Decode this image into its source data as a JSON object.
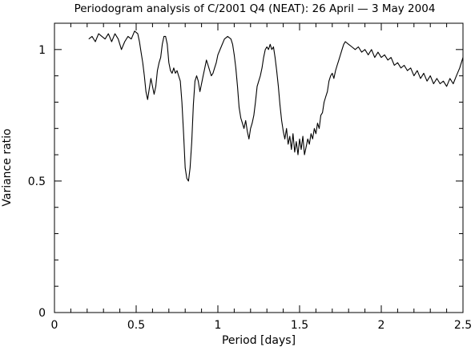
{
  "chart_data": {
    "type": "line",
    "title": "Periodogram analysis of C/2001 Q4 (NEAT): 26 April — 3 May 2004",
    "xlabel": "Period [days]",
    "ylabel": "Variance ratio",
    "xlim": [
      0,
      2.5
    ],
    "ylim": [
      0,
      1.1
    ],
    "x_ticks": [
      {
        "value": 0,
        "label": "0"
      },
      {
        "value": 0.5,
        "label": "0.5"
      },
      {
        "value": 1,
        "label": "1"
      },
      {
        "value": 1.5,
        "label": "1.5"
      },
      {
        "value": 2,
        "label": "2"
      },
      {
        "value": 2.5,
        "label": "2.5"
      }
    ],
    "y_ticks": [
      {
        "value": 0,
        "label": "0"
      },
      {
        "value": 0.5,
        "label": "0.5"
      },
      {
        "value": 1,
        "label": "1"
      }
    ],
    "x_minor_step": 0.1,
    "y_minor_step": 0.1,
    "grid": false,
    "series": [
      {
        "color": "#000000",
        "points": [
          [
            0.21,
            1.04
          ],
          [
            0.23,
            1.05
          ],
          [
            0.25,
            1.03
          ],
          [
            0.27,
            1.06
          ],
          [
            0.29,
            1.05
          ],
          [
            0.31,
            1.04
          ],
          [
            0.33,
            1.06
          ],
          [
            0.35,
            1.03
          ],
          [
            0.37,
            1.06
          ],
          [
            0.39,
            1.04
          ],
          [
            0.41,
            1.0
          ],
          [
            0.43,
            1.03
          ],
          [
            0.45,
            1.05
          ],
          [
            0.47,
            1.04
          ],
          [
            0.49,
            1.07
          ],
          [
            0.51,
            1.06
          ],
          [
            0.52,
            1.03
          ],
          [
            0.53,
            0.99
          ],
          [
            0.54,
            0.95
          ],
          [
            0.55,
            0.9
          ],
          [
            0.56,
            0.84
          ],
          [
            0.57,
            0.81
          ],
          [
            0.58,
            0.85
          ],
          [
            0.59,
            0.89
          ],
          [
            0.6,
            0.86
          ],
          [
            0.61,
            0.83
          ],
          [
            0.62,
            0.86
          ],
          [
            0.63,
            0.92
          ],
          [
            0.64,
            0.95
          ],
          [
            0.65,
            0.97
          ],
          [
            0.66,
            1.02
          ],
          [
            0.67,
            1.05
          ],
          [
            0.68,
            1.05
          ],
          [
            0.69,
            1.02
          ],
          [
            0.7,
            0.95
          ],
          [
            0.71,
            0.92
          ],
          [
            0.72,
            0.91
          ],
          [
            0.73,
            0.93
          ],
          [
            0.74,
            0.91
          ],
          [
            0.75,
            0.92
          ],
          [
            0.76,
            0.9
          ],
          [
            0.77,
            0.88
          ],
          [
            0.78,
            0.8
          ],
          [
            0.79,
            0.68
          ],
          [
            0.8,
            0.55
          ],
          [
            0.81,
            0.51
          ],
          [
            0.82,
            0.5
          ],
          [
            0.83,
            0.55
          ],
          [
            0.84,
            0.65
          ],
          [
            0.85,
            0.79
          ],
          [
            0.86,
            0.88
          ],
          [
            0.87,
            0.9
          ],
          [
            0.88,
            0.88
          ],
          [
            0.89,
            0.84
          ],
          [
            0.9,
            0.87
          ],
          [
            0.91,
            0.9
          ],
          [
            0.92,
            0.93
          ],
          [
            0.93,
            0.96
          ],
          [
            0.94,
            0.94
          ],
          [
            0.95,
            0.92
          ],
          [
            0.96,
            0.9
          ],
          [
            0.97,
            0.91
          ],
          [
            0.98,
            0.93
          ],
          [
            0.99,
            0.95
          ],
          [
            1.0,
            0.98
          ],
          [
            1.02,
            1.01
          ],
          [
            1.04,
            1.04
          ],
          [
            1.06,
            1.05
          ],
          [
            1.08,
            1.04
          ],
          [
            1.09,
            1.02
          ],
          [
            1.1,
            0.98
          ],
          [
            1.11,
            0.93
          ],
          [
            1.12,
            0.86
          ],
          [
            1.13,
            0.78
          ],
          [
            1.14,
            0.74
          ],
          [
            1.15,
            0.72
          ],
          [
            1.16,
            0.7
          ],
          [
            1.17,
            0.73
          ],
          [
            1.18,
            0.69
          ],
          [
            1.19,
            0.66
          ],
          [
            1.2,
            0.7
          ],
          [
            1.21,
            0.72
          ],
          [
            1.22,
            0.75
          ],
          [
            1.23,
            0.8
          ],
          [
            1.24,
            0.86
          ],
          [
            1.25,
            0.88
          ],
          [
            1.26,
            0.9
          ],
          [
            1.27,
            0.93
          ],
          [
            1.28,
            0.97
          ],
          [
            1.29,
            1.0
          ],
          [
            1.3,
            1.01
          ],
          [
            1.31,
            1.0
          ],
          [
            1.32,
            1.02
          ],
          [
            1.33,
            1.0
          ],
          [
            1.34,
            1.01
          ],
          [
            1.35,
            0.97
          ],
          [
            1.36,
            0.92
          ],
          [
            1.37,
            0.86
          ],
          [
            1.38,
            0.79
          ],
          [
            1.39,
            0.73
          ],
          [
            1.4,
            0.69
          ],
          [
            1.41,
            0.66
          ],
          [
            1.42,
            0.7
          ],
          [
            1.43,
            0.64
          ],
          [
            1.44,
            0.67
          ],
          [
            1.45,
            0.62
          ],
          [
            1.46,
            0.68
          ],
          [
            1.47,
            0.61
          ],
          [
            1.48,
            0.65
          ],
          [
            1.49,
            0.6
          ],
          [
            1.5,
            0.66
          ],
          [
            1.51,
            0.62
          ],
          [
            1.52,
            0.67
          ],
          [
            1.53,
            0.6
          ],
          [
            1.54,
            0.63
          ],
          [
            1.55,
            0.66
          ],
          [
            1.56,
            0.64
          ],
          [
            1.57,
            0.68
          ],
          [
            1.58,
            0.66
          ],
          [
            1.59,
            0.7
          ],
          [
            1.6,
            0.68
          ],
          [
            1.61,
            0.72
          ],
          [
            1.62,
            0.7
          ],
          [
            1.63,
            0.75
          ],
          [
            1.64,
            0.76
          ],
          [
            1.65,
            0.8
          ],
          [
            1.66,
            0.82
          ],
          [
            1.67,
            0.84
          ],
          [
            1.68,
            0.88
          ],
          [
            1.69,
            0.9
          ],
          [
            1.7,
            0.91
          ],
          [
            1.71,
            0.89
          ],
          [
            1.72,
            0.92
          ],
          [
            1.73,
            0.94
          ],
          [
            1.74,
            0.96
          ],
          [
            1.75,
            0.98
          ],
          [
            1.76,
            1.0
          ],
          [
            1.77,
            1.02
          ],
          [
            1.78,
            1.03
          ],
          [
            1.8,
            1.02
          ],
          [
            1.82,
            1.01
          ],
          [
            1.84,
            1.0
          ],
          [
            1.86,
            1.01
          ],
          [
            1.88,
            0.99
          ],
          [
            1.9,
            1.0
          ],
          [
            1.92,
            0.98
          ],
          [
            1.94,
            1.0
          ],
          [
            1.96,
            0.97
          ],
          [
            1.98,
            0.99
          ],
          [
            2.0,
            0.97
          ],
          [
            2.02,
            0.98
          ],
          [
            2.04,
            0.96
          ],
          [
            2.06,
            0.97
          ],
          [
            2.08,
            0.94
          ],
          [
            2.1,
            0.95
          ],
          [
            2.12,
            0.93
          ],
          [
            2.14,
            0.94
          ],
          [
            2.16,
            0.92
          ],
          [
            2.18,
            0.93
          ],
          [
            2.2,
            0.9
          ],
          [
            2.22,
            0.92
          ],
          [
            2.24,
            0.89
          ],
          [
            2.26,
            0.91
          ],
          [
            2.28,
            0.88
          ],
          [
            2.3,
            0.9
          ],
          [
            2.32,
            0.87
          ],
          [
            2.34,
            0.89
          ],
          [
            2.36,
            0.87
          ],
          [
            2.38,
            0.88
          ],
          [
            2.4,
            0.86
          ],
          [
            2.42,
            0.89
          ],
          [
            2.44,
            0.87
          ],
          [
            2.46,
            0.9
          ],
          [
            2.48,
            0.93
          ],
          [
            2.5,
            0.97
          ]
        ]
      }
    ]
  }
}
